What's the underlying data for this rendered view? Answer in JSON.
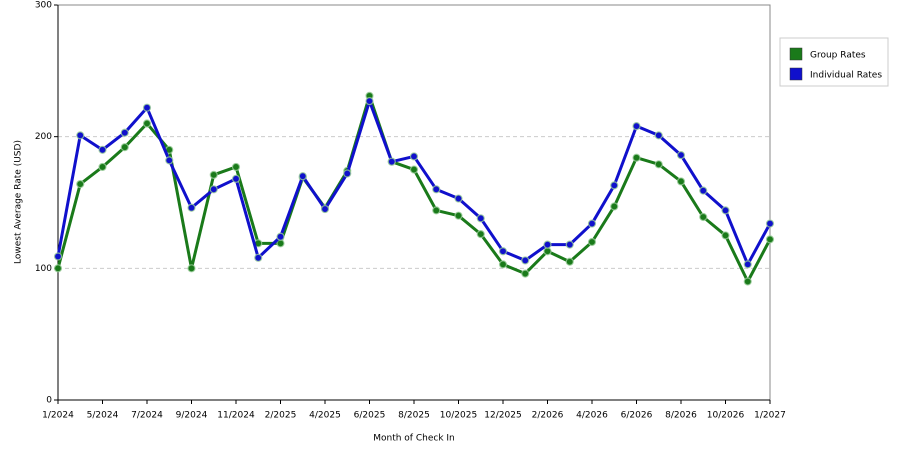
{
  "chart_data": {
    "type": "line",
    "x_label": "Month of Check In",
    "y_label": "Lowest Average Rate (USD)",
    "categories": [
      "1/2024",
      null,
      "5/2024",
      null,
      "7/2024",
      null,
      "9/2024",
      null,
      "11/2024",
      null,
      "2/2025",
      null,
      "4/2025",
      null,
      "6/2025",
      null,
      "8/2025",
      null,
      "10/2025",
      null,
      "12/2025",
      null,
      "2/2026",
      null,
      "4/2026",
      null,
      "6/2026",
      null,
      "8/2026",
      null,
      "10/2026",
      null,
      "1/2027"
    ],
    "series": [
      {
        "name": "Group Rates",
        "color": "#1a7a1a",
        "values": [
          100,
          164,
          177,
          192,
          210,
          190,
          100,
          171,
          177,
          119,
          119,
          169,
          146,
          174,
          231,
          181,
          175,
          144,
          140,
          126,
          103,
          96,
          113,
          105,
          120,
          147,
          184,
          179,
          166,
          139,
          125,
          90,
          122
        ]
      },
      {
        "name": "Individual Rates",
        "color": "#1010cc",
        "values": [
          109,
          201,
          190,
          203,
          222,
          182,
          146,
          160,
          168,
          108,
          124,
          170,
          145,
          172,
          227,
          181,
          185,
          160,
          153,
          138,
          113,
          106,
          118,
          118,
          134,
          163,
          208,
          201,
          186,
          159,
          144,
          103,
          134
        ]
      }
    ],
    "ylim": [
      0,
      300
    ],
    "yticks": [
      0,
      100,
      200,
      300
    ],
    "grid": true,
    "legend": "right"
  }
}
